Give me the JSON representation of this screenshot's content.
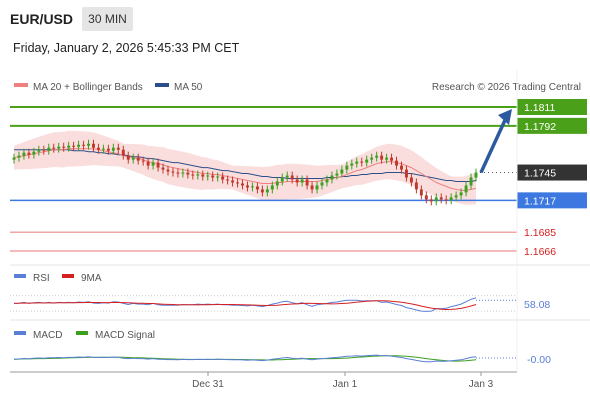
{
  "header": {
    "symbol": "EUR/USD",
    "timeframe": "30 MIN",
    "datetime": "Friday, January 2, 2026 5:45:33 PM CET"
  },
  "legend": {
    "ma20": {
      "label": "MA 20 + Bollinger Bands",
      "color": "#f08080"
    },
    "ma50": {
      "label": "MA 50",
      "color": "#2c4f8a"
    },
    "research": "Research © 2026 Trading Central"
  },
  "rsi_legend": {
    "rsi": {
      "label": "RSI",
      "color": "#5a7fd6"
    },
    "ma9": {
      "label": "9MA",
      "color": "#d62020"
    }
  },
  "macd_legend": {
    "macd": {
      "label": "MACD",
      "color": "#5a7fd6"
    },
    "signal": {
      "label": "MACD Signal",
      "color": "#3aa01e"
    }
  },
  "colors": {
    "resistance": "#4aa018",
    "support": "#3c78e0",
    "target_red": "#d62020",
    "current": "#333333",
    "bull": "#3aa01e",
    "bear": "#c0392b",
    "arrow": "#2c5aa0",
    "band": "#f8d0d0"
  },
  "chart_data": {
    "type": "candlestick",
    "price_levels": [
      {
        "label": "1.1811",
        "value": 1.1811,
        "kind": "resistance"
      },
      {
        "label": "1.1792",
        "value": 1.1792,
        "kind": "resistance"
      },
      {
        "label": "1.1745",
        "value": 1.1745,
        "kind": "current"
      },
      {
        "label": "1.1717",
        "value": 1.1717,
        "kind": "support"
      },
      {
        "label": "1.1685",
        "value": 1.1685,
        "kind": "target"
      },
      {
        "label": "1.1666",
        "value": 1.1666,
        "kind": "target"
      }
    ],
    "price_range": [
      1.166,
      1.182
    ],
    "x_labels": [
      "Dec 31",
      "Jan 1",
      "Jan 3"
    ],
    "close": [
      1.176,
      1.1762,
      1.1765,
      1.1763,
      1.1766,
      1.1768,
      1.1767,
      1.177,
      1.1769,
      1.1771,
      1.177,
      1.1772,
      1.1771,
      1.1773,
      1.1772,
      1.1774,
      1.177,
      1.1768,
      1.1769,
      1.1767,
      1.177,
      1.1768,
      1.1762,
      1.1758,
      1.176,
      1.1757,
      1.1756,
      1.1752,
      1.1755,
      1.175,
      1.1748,
      1.1746,
      1.1745,
      1.1744,
      1.1745,
      1.1743,
      1.1742,
      1.1743,
      1.1741,
      1.1742,
      1.174,
      1.1741,
      1.1738,
      1.1737,
      1.1735,
      1.1734,
      1.1732,
      1.173,
      1.1731,
      1.1728,
      1.1725,
      1.1728,
      1.1732,
      1.1736,
      1.174,
      1.1742,
      1.1738,
      1.1735,
      1.1738,
      1.1732,
      1.1728,
      1.1732,
      1.1735,
      1.1738,
      1.1742,
      1.1744,
      1.1748,
      1.1752,
      1.1754,
      1.1756,
      1.1755,
      1.1758,
      1.176,
      1.1762,
      1.1758,
      1.176,
      1.1757,
      1.1752,
      1.1748,
      1.174,
      1.1735,
      1.1728,
      1.1722,
      1.1718,
      1.1716,
      1.172,
      1.1718,
      1.1717,
      1.172,
      1.1722,
      1.1725,
      1.1732,
      1.174,
      1.1745
    ],
    "ma20": [
      1.176,
      1.1761,
      1.1762,
      1.1763,
      1.1764,
      1.1765,
      1.1766,
      1.1767,
      1.1768,
      1.1768,
      1.1768,
      1.1769,
      1.1769,
      1.1769,
      1.1769,
      1.1769,
      1.1769,
      1.1768,
      1.1767,
      1.1766,
      1.1765,
      1.1764,
      1.1762,
      1.1761,
      1.176,
      1.1759,
      1.1758,
      1.1756,
      1.1755,
      1.1754,
      1.1753,
      1.1751,
      1.175,
      1.1749,
      1.1748,
      1.1747,
      1.1746,
      1.1745,
      1.1744,
      1.1744,
      1.1743,
      1.1743,
      1.1742,
      1.1741,
      1.174,
      1.1739,
      1.1738,
      1.1737,
      1.1736,
      1.1735,
      1.1734,
      1.1734,
      1.1734,
      1.1735,
      1.1735,
      1.1736,
      1.1736,
      1.1736,
      1.1736,
      1.1736,
      1.1736,
      1.1736,
      1.1737,
      1.1738,
      1.1739,
      1.174,
      1.1741,
      1.1743,
      1.1745,
      1.1747,
      1.1748,
      1.175,
      1.1752,
      1.1754,
      1.1755,
      1.1756,
      1.1756,
      1.1755,
      1.1754,
      1.1752,
      1.175,
      1.1747,
      1.1744,
      1.1741,
      1.1738,
      1.1735,
      1.1733,
      1.1731,
      1.1729,
      1.1728,
      1.1727,
      1.1727,
      1.1728,
      1.1729
    ],
    "ma50": [
      1.1768,
      1.1768,
      1.1768,
      1.1768,
      1.1768,
      1.1768,
      1.1768,
      1.1768,
      1.1768,
      1.1768,
      1.1768,
      1.1768,
      1.1767,
      1.1767,
      1.1767,
      1.1766,
      1.1766,
      1.1765,
      1.1765,
      1.1764,
      1.1764,
      1.1763,
      1.1763,
      1.1762,
      1.1761,
      1.1761,
      1.176,
      1.1759,
      1.1759,
      1.1758,
      1.1757,
      1.1756,
      1.1755,
      1.1755,
      1.1754,
      1.1753,
      1.1752,
      1.1751,
      1.175,
      1.175,
      1.1749,
      1.1748,
      1.1747,
      1.1747,
      1.1746,
      1.1745,
      1.1744,
      1.1744,
      1.1743,
      1.1742,
      1.1741,
      1.1741,
      1.174,
      1.174,
      1.174,
      1.1739,
      1.1739,
      1.1739,
      1.1739,
      1.1739,
      1.1739,
      1.1739,
      1.1739,
      1.174,
      1.174,
      1.174,
      1.1741,
      1.1741,
      1.1742,
      1.1742,
      1.1743,
      1.1743,
      1.1744,
      1.1744,
      1.1744,
      1.1745,
      1.1745,
      1.1745,
      1.1745,
      1.1744,
      1.1744,
      1.1743,
      1.1742,
      1.1741,
      1.174,
      1.1739,
      1.1738,
      1.1737,
      1.1737,
      1.1736,
      1.1736,
      1.1736,
      1.1736,
      1.1737
    ],
    "rsi": {
      "label": "58.08",
      "value": 58.08,
      "levels": [
        30,
        70
      ]
    },
    "macd": {
      "label": "-0.00",
      "value": -0.0
    }
  }
}
